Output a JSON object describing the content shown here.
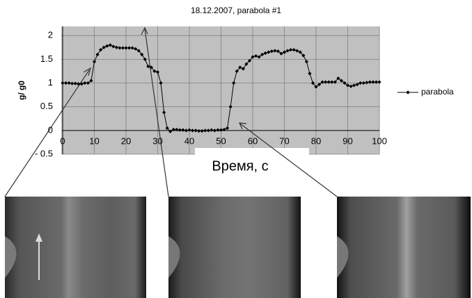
{
  "chart_data": {
    "type": "line",
    "title": "18.12.2007, parabola #1",
    "y_label": "g/ g0",
    "x_label": "Время, с",
    "x": [
      0,
      1,
      2,
      3,
      4,
      5,
      6,
      7,
      8,
      9,
      10,
      11,
      12,
      13,
      14,
      15,
      16,
      17,
      18,
      19,
      20,
      21,
      22,
      23,
      24,
      25,
      26,
      27,
      28,
      29,
      30,
      31,
      32,
      33,
      34,
      35,
      36,
      37,
      38,
      39,
      40,
      41,
      42,
      43,
      44,
      45,
      46,
      47,
      48,
      49,
      50,
      51,
      52,
      53,
      54,
      55,
      56,
      57,
      58,
      59,
      60,
      61,
      62,
      63,
      64,
      65,
      66,
      67,
      68,
      69,
      70,
      71,
      72,
      73,
      74,
      75,
      76,
      77,
      78,
      79,
      80,
      81,
      82,
      83,
      84,
      85,
      86,
      87,
      88,
      89,
      90,
      91,
      92,
      93,
      94,
      95,
      96,
      97,
      98,
      99,
      100
    ],
    "series": [
      {
        "name": "parabola",
        "color": "#000000",
        "values": [
          1.0,
          1.0,
          1.0,
          0.99,
          0.99,
          0.98,
          0.98,
          1.0,
          1.0,
          1.05,
          1.45,
          1.6,
          1.7,
          1.75,
          1.78,
          1.8,
          1.77,
          1.75,
          1.74,
          1.74,
          1.74,
          1.74,
          1.74,
          1.72,
          1.68,
          1.6,
          1.5,
          1.35,
          1.33,
          1.25,
          1.23,
          1.0,
          0.38,
          0.05,
          -0.02,
          0.02,
          0.02,
          0.01,
          0.01,
          0.0,
          0.01,
          0.0,
          0.0,
          -0.01,
          -0.01,
          0.0,
          0.0,
          0.01,
          0.0,
          0.01,
          0.01,
          0.02,
          0.05,
          0.5,
          1.0,
          1.25,
          1.33,
          1.3,
          1.4,
          1.47,
          1.55,
          1.57,
          1.55,
          1.6,
          1.63,
          1.65,
          1.67,
          1.68,
          1.67,
          1.62,
          1.65,
          1.68,
          1.7,
          1.7,
          1.68,
          1.65,
          1.58,
          1.45,
          1.2,
          1.0,
          0.92,
          0.97,
          1.02,
          1.02,
          1.02,
          1.02,
          1.02,
          1.1,
          1.05,
          1.0,
          0.95,
          0.93,
          0.95,
          0.97,
          1.0,
          1.0,
          1.01,
          1.02,
          1.02,
          1.02,
          1.02
        ]
      }
    ],
    "xlim": [
      0,
      100
    ],
    "xticks": [
      0,
      10,
      20,
      30,
      40,
      50,
      60,
      70,
      80,
      90,
      100
    ],
    "ylim": [
      -0.5,
      2
    ],
    "yticks": [
      {
        "value": -0.5,
        "label": "- 0.5"
      },
      0,
      0.5,
      1,
      1.5,
      2
    ],
    "grid": true,
    "legend": "right"
  }
}
